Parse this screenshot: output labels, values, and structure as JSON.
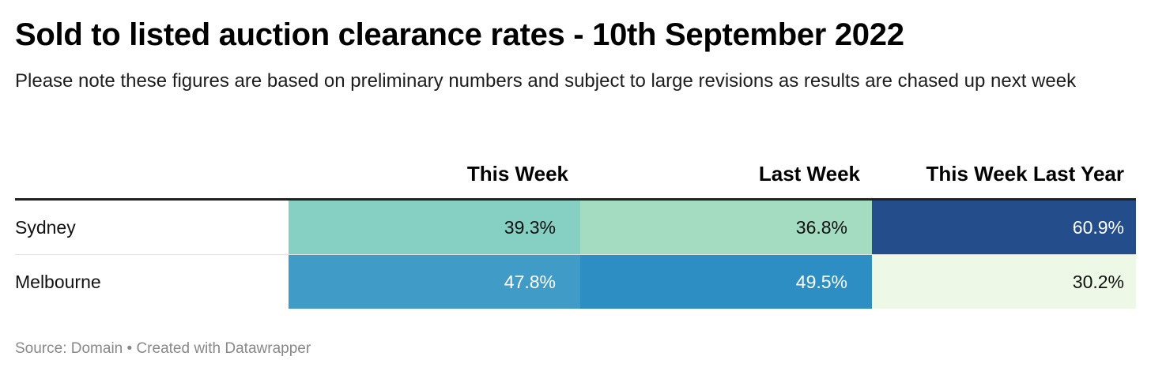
{
  "title": "Sold to listed auction clearance rates - 10th September 2022",
  "subtitle": "Please note these figures are based on preliminary numbers and subject to large revisions as results are chased up next week",
  "footer": {
    "source": "Source: Domain",
    "separator": "•",
    "credit": "Created with Datawrapper"
  },
  "chart_data": {
    "type": "table",
    "title": "Sold to listed auction clearance rates - 10th September 2022",
    "subtitle": "Please note these figures are based on preliminary numbers and subject to large revisions as results are chased up next week",
    "columns": [
      "This Week",
      "Last Week",
      "This Week Last Year"
    ],
    "rows": [
      {
        "label": "Sydney",
        "values": [
          39.3,
          36.8,
          60.9
        ],
        "display": [
          "39.3%",
          "36.8%",
          "60.9%"
        ],
        "colors": [
          "#86cfc3",
          "#a3dcc0",
          "#244d8c"
        ],
        "text_colors": [
          "#111111",
          "#111111",
          "#ffffff"
        ]
      },
      {
        "label": "Melbourne",
        "values": [
          47.8,
          49.5,
          30.2
        ],
        "display": [
          "47.8%",
          "49.5%",
          "30.2%"
        ],
        "colors": [
          "#409bc6",
          "#2c8ec2",
          "#eef8e6"
        ],
        "text_colors": [
          "#ffffff",
          "#ffffff",
          "#111111"
        ]
      }
    ],
    "unit": "%",
    "color_scale": "sequential green-blue heatmap"
  }
}
